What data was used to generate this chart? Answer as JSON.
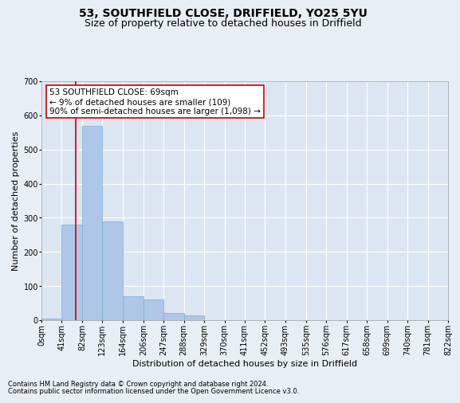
{
  "title": "53, SOUTHFIELD CLOSE, DRIFFIELD, YO25 5YU",
  "subtitle": "Size of property relative to detached houses in Driffield",
  "xlabel": "Distribution of detached houses by size in Driffield",
  "ylabel": "Number of detached properties",
  "footnote1": "Contains HM Land Registry data © Crown copyright and database right 2024.",
  "footnote2": "Contains public sector information licensed under the Open Government Licence v3.0.",
  "bins": [
    0,
    41,
    82,
    123,
    164,
    206,
    247,
    288,
    329,
    370,
    411,
    452,
    493,
    535,
    576,
    617,
    658,
    699,
    740,
    781,
    822
  ],
  "bin_labels": [
    "0sqm",
    "41sqm",
    "82sqm",
    "123sqm",
    "164sqm",
    "206sqm",
    "247sqm",
    "288sqm",
    "329sqm",
    "370sqm",
    "411sqm",
    "452sqm",
    "493sqm",
    "535sqm",
    "576sqm",
    "617sqm",
    "658sqm",
    "699sqm",
    "740sqm",
    "781sqm",
    "822sqm"
  ],
  "bar_values": [
    5,
    280,
    570,
    290,
    70,
    60,
    20,
    15,
    0,
    0,
    0,
    0,
    0,
    0,
    0,
    0,
    0,
    0,
    0,
    0
  ],
  "bar_color": "#aec6e8",
  "bar_edgecolor": "#7bafd4",
  "property_size": 69,
  "red_line_color": "#cc0000",
  "annotation_line1": "53 SOUTHFIELD CLOSE: 69sqm",
  "annotation_line2": "← 9% of detached houses are smaller (109)",
  "annotation_line3": "90% of semi-detached houses are larger (1,098) →",
  "annotation_box_edgecolor": "#cc0000",
  "annotation_box_facecolor": "white",
  "ylim": [
    0,
    700
  ],
  "yticks": [
    0,
    100,
    200,
    300,
    400,
    500,
    600,
    700
  ],
  "background_color": "#e8eef5",
  "plot_bg_color": "#dce6f2",
  "grid_color": "white",
  "title_fontsize": 10,
  "subtitle_fontsize": 9,
  "axis_label_fontsize": 8,
  "tick_fontsize": 7,
  "annotation_fontsize": 7.5,
  "footnote_fontsize": 6
}
